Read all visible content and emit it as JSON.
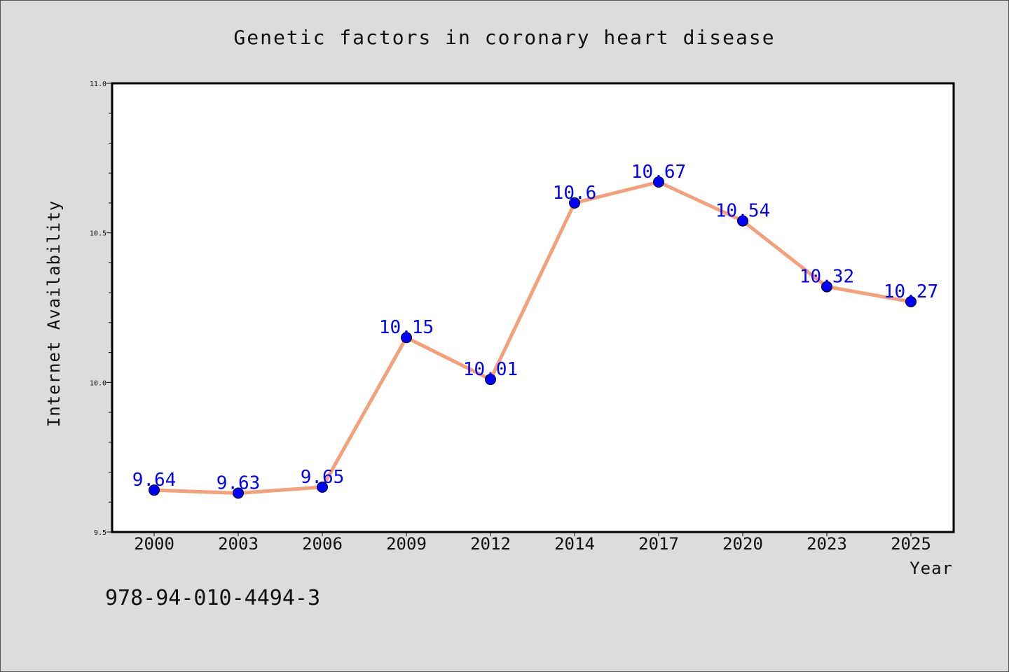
{
  "chart_data": {
    "type": "line",
    "title": "Genetic factors in coronary heart disease",
    "xlabel": "Year",
    "ylabel": "Internet Availability",
    "categories": [
      "2000",
      "2003",
      "2006",
      "2009",
      "2012",
      "2014",
      "2017",
      "2020",
      "2023",
      "2025"
    ],
    "values": [
      9.64,
      9.63,
      9.65,
      10.15,
      10.01,
      10.6,
      10.67,
      10.54,
      10.32,
      10.27
    ],
    "value_labels": [
      "9.64",
      "9.63",
      "9.65",
      "10.15",
      "10.01",
      "10.6",
      "10.67",
      "10.54",
      "10.32",
      "10.27"
    ],
    "ylim": [
      9.5,
      11.0
    ],
    "y_ticks": [
      "9.5",
      "10.0",
      "10.5",
      "11.0"
    ],
    "grid": false,
    "line_color": "#f4a07a",
    "marker_color": "#0000ff",
    "label_color": "#0000ff"
  },
  "footer": {
    "isbn": "978-94-010-4494-3"
  }
}
